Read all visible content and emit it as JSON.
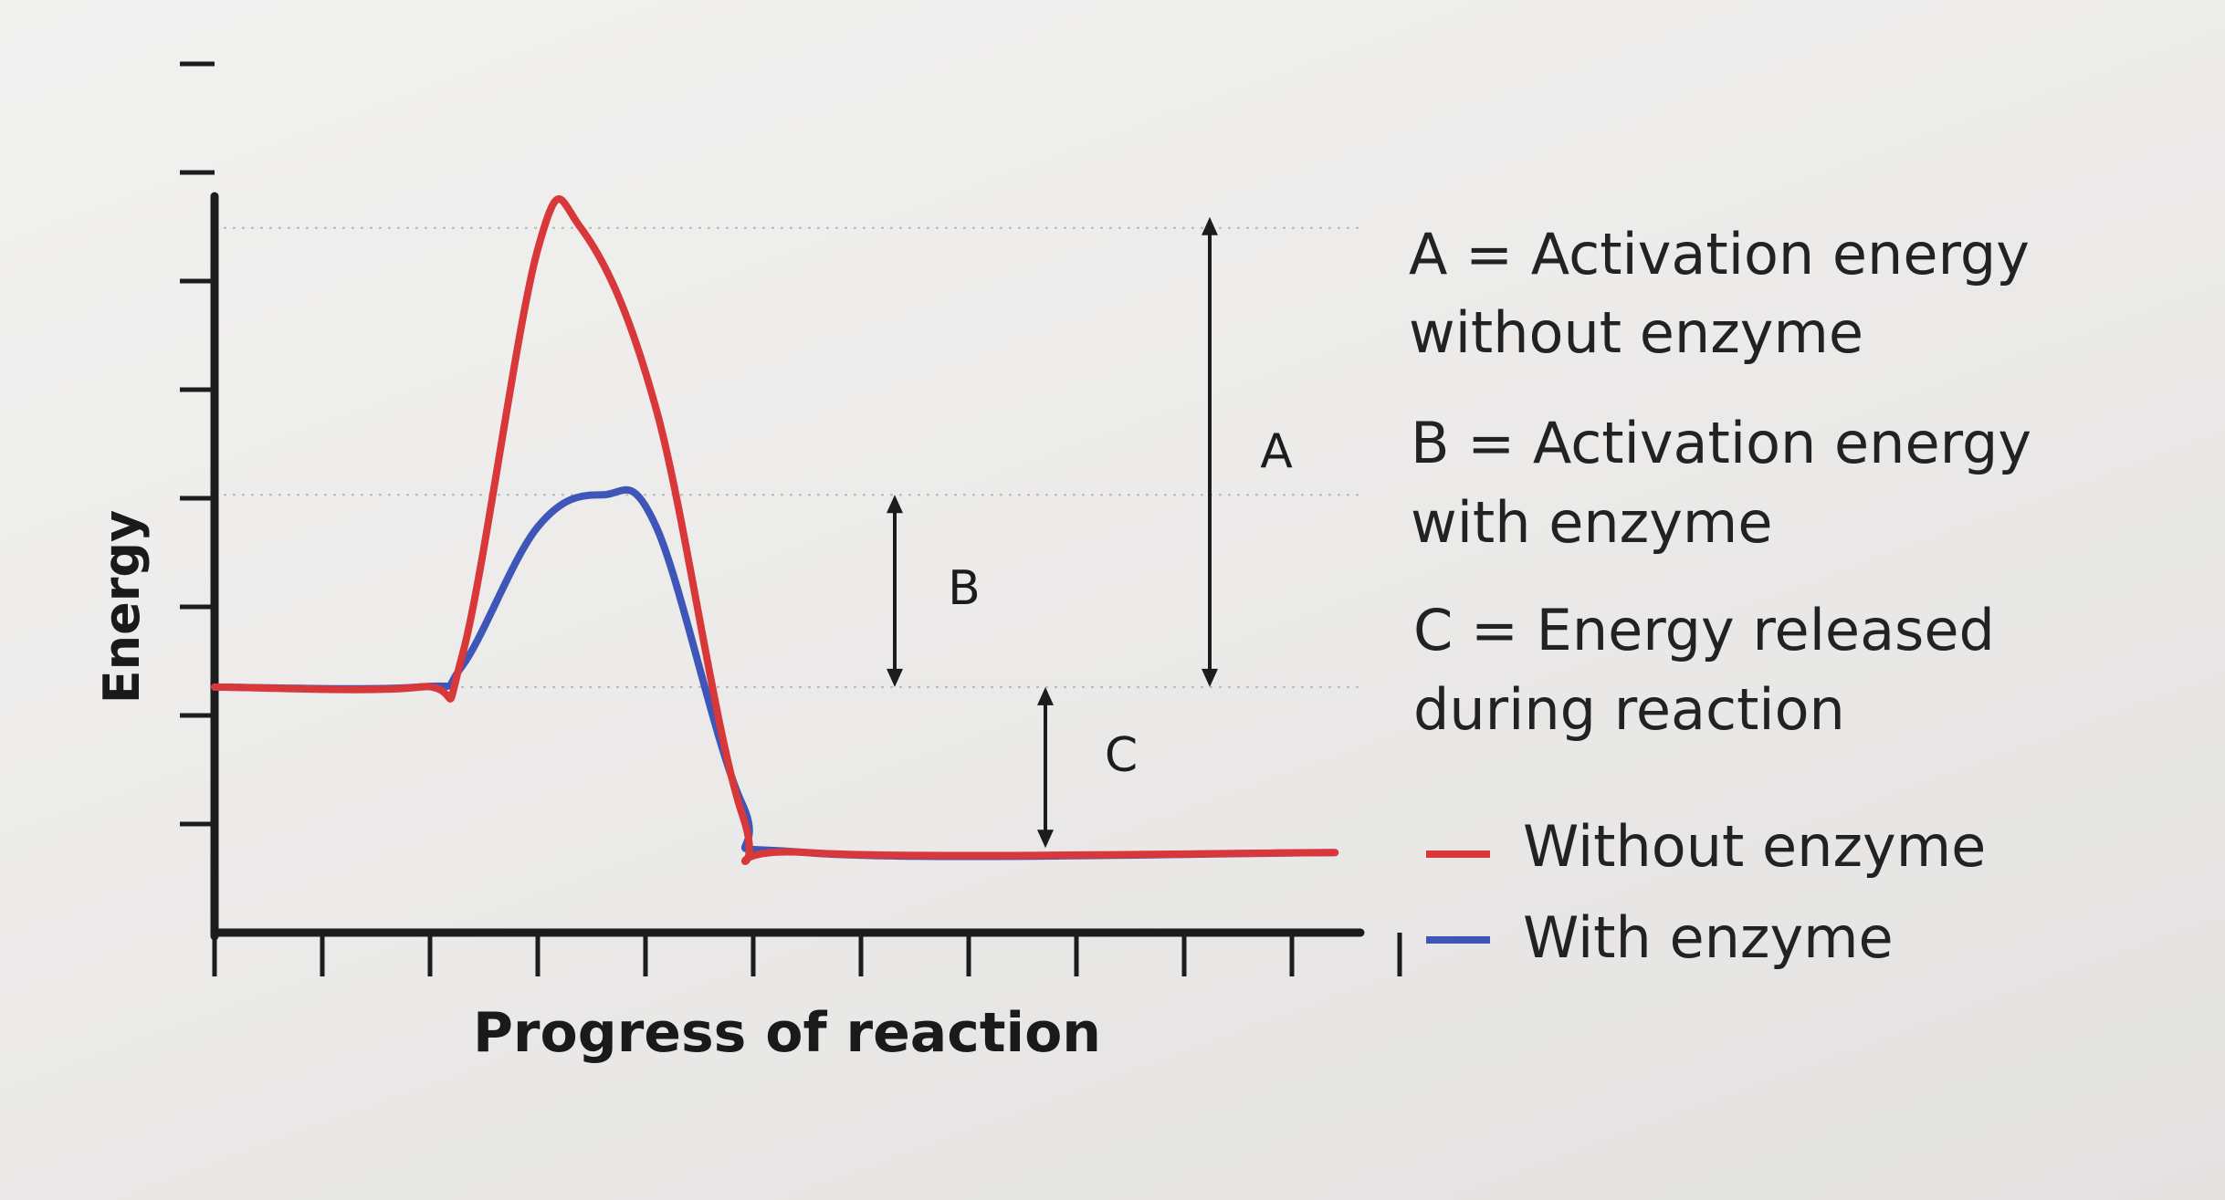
{
  "chart_data": {
    "type": "line",
    "ylabel": "Energy",
    "xlabel": "Progress of reaction",
    "grid": false,
    "x_ticks": 11,
    "y_ticks": 8,
    "series": [
      {
        "name": "Without enzyme",
        "color": "#d9383b",
        "points": [
          [
            0,
            2.3
          ],
          [
            1.9,
            2.3
          ],
          [
            2.3,
            2.6
          ],
          [
            3.0,
            6.4
          ],
          [
            3.4,
            6.6
          ],
          [
            4.1,
            4.9
          ],
          [
            4.9,
            1.1
          ],
          [
            5.5,
            0.75
          ],
          [
            10.4,
            0.75
          ]
        ]
      },
      {
        "name": "With enzyme",
        "color": "#3d56b8",
        "points": [
          [
            0,
            2.3
          ],
          [
            1.9,
            2.3
          ],
          [
            2.3,
            2.5
          ],
          [
            3.0,
            3.8
          ],
          [
            3.6,
            4.1
          ],
          [
            4.1,
            3.8
          ],
          [
            4.9,
            1.2
          ],
          [
            5.5,
            0.75
          ],
          [
            10.4,
            0.75
          ]
        ]
      }
    ],
    "annotations": [
      {
        "label": "A",
        "from": 2.3,
        "to": 6.6
      },
      {
        "label": "B",
        "from": 2.3,
        "to": 4.1
      },
      {
        "label": "C",
        "from": 0.75,
        "to": 2.3
      }
    ],
    "key": [
      {
        "line1": "A = Activation energy",
        "line2": "without enzyme"
      },
      {
        "line1": "B = Activation energy",
        "line2": "with enzyme"
      },
      {
        "line1": "C = Energy released",
        "line2": "during reaction"
      }
    ],
    "legend": [
      "Without enzyme",
      "With enzyme"
    ]
  }
}
